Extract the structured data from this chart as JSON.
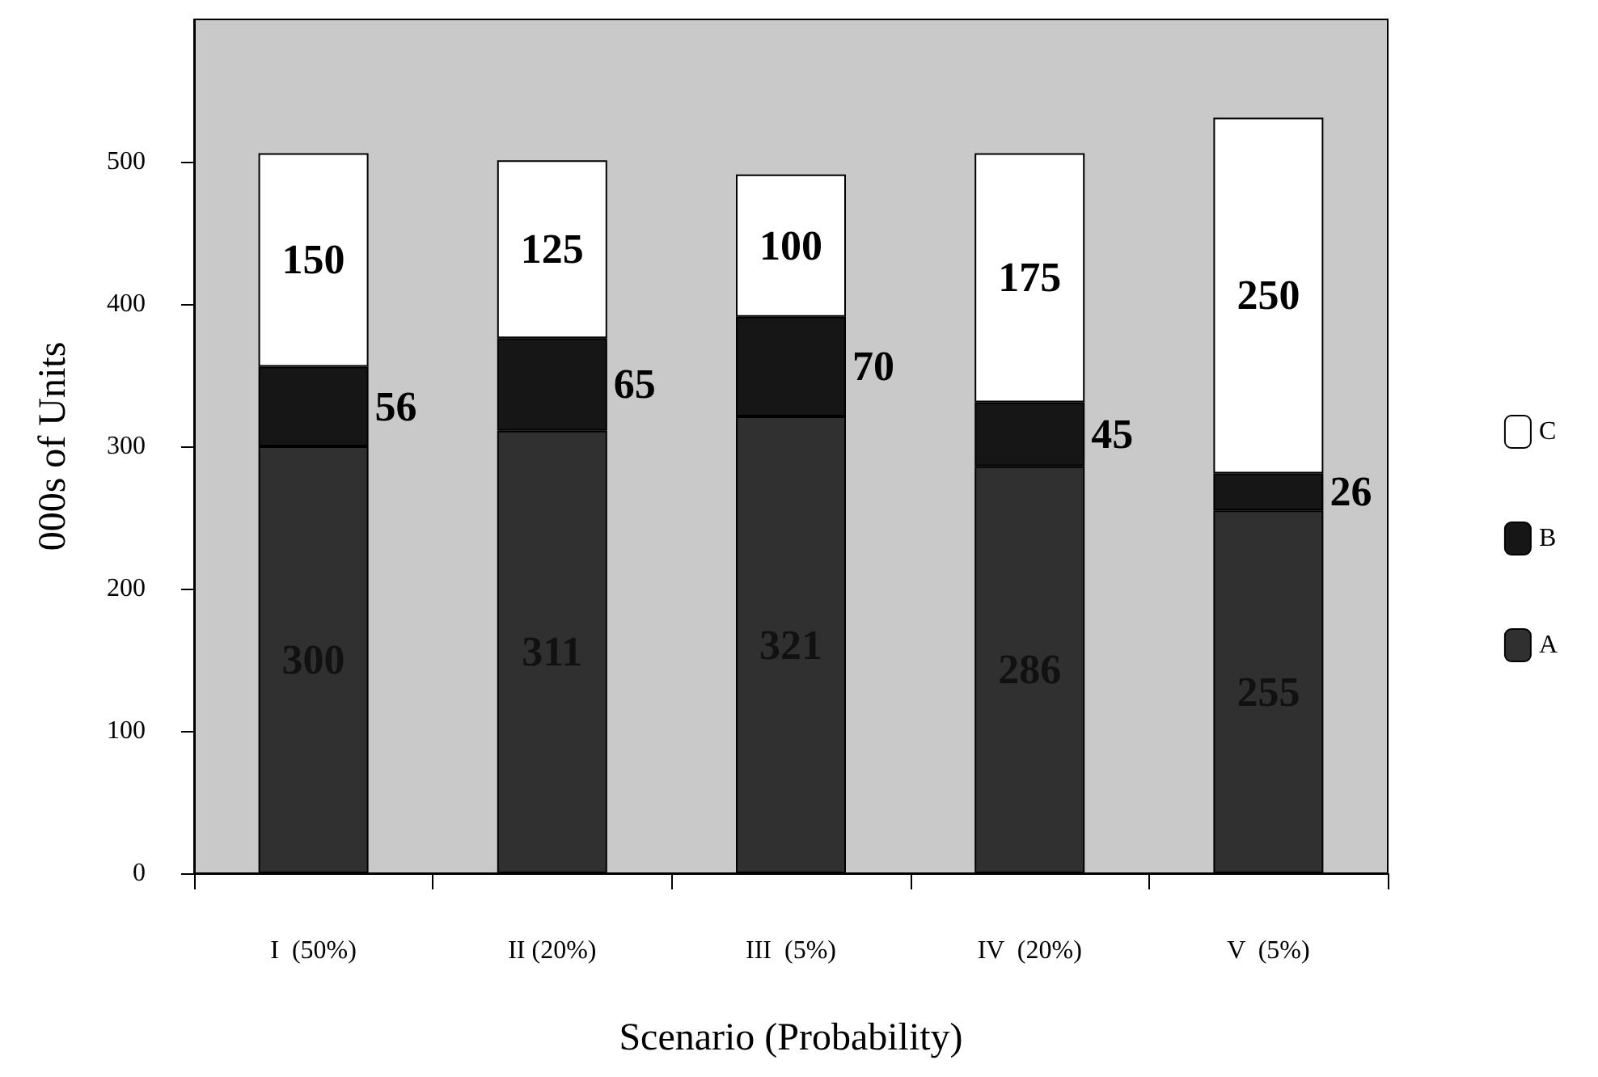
{
  "chart_data": {
    "type": "bar",
    "stacked": true,
    "xlabel": "Scenario (Probability)",
    "ylabel": "000s of Units",
    "categories": [
      "I  (50%)",
      "II (20%)",
      "III  (5%)",
      "IV  (20%)",
      "V  (5%)"
    ],
    "series": [
      {
        "name": "A",
        "color": "#303030",
        "values": [
          300,
          311,
          321,
          286,
          255
        ]
      },
      {
        "name": "B",
        "color": "#161616",
        "values": [
          56,
          65,
          70,
          45,
          26
        ]
      },
      {
        "name": "C",
        "color": "#ffffff",
        "values": [
          150,
          125,
          100,
          175,
          250
        ]
      }
    ],
    "ylim": [
      0,
      600
    ],
    "yticks": [
      0,
      100,
      200,
      300,
      400,
      500
    ],
    "data_labels": true,
    "grid": false,
    "legend": "right"
  }
}
